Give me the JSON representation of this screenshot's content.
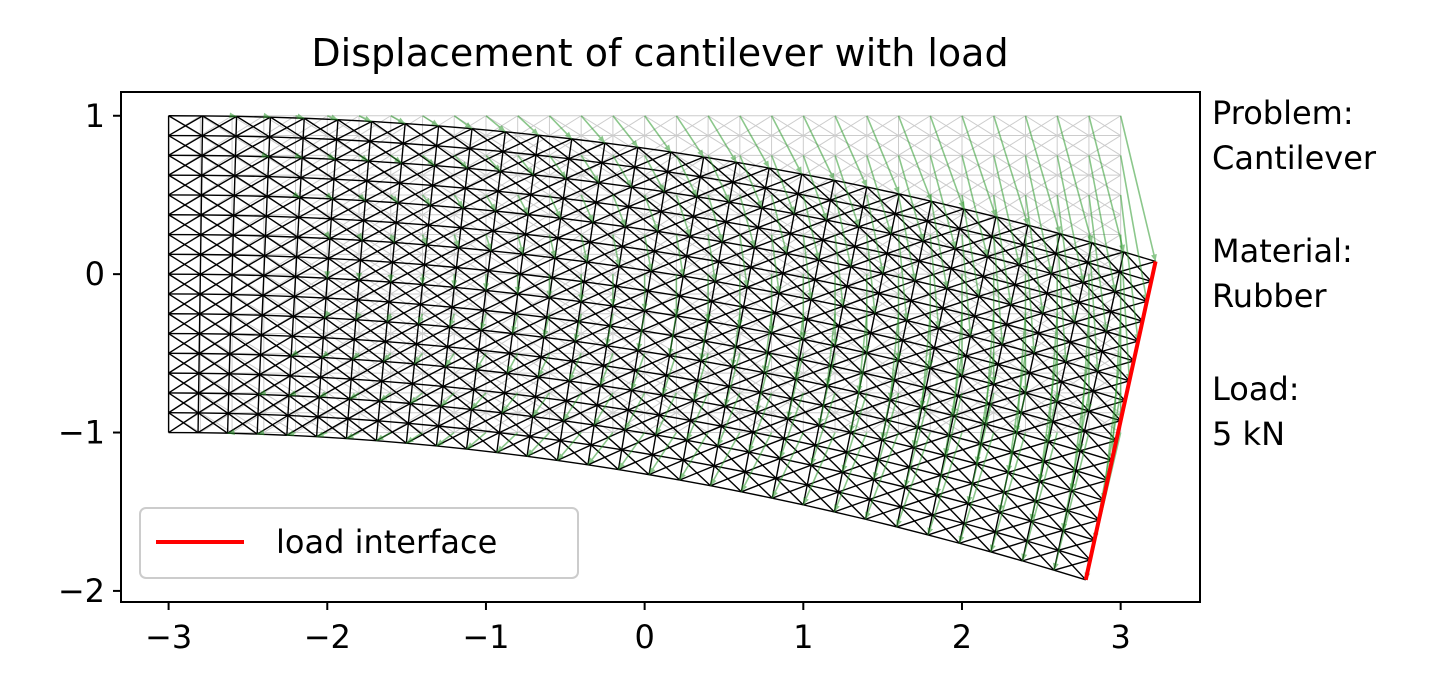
{
  "chart_data": {
    "type": "mesh-displacement",
    "title": "Displacement of cantilever with load",
    "xlabel": "",
    "ylabel": "",
    "xlim": [
      -3.3,
      3.5
    ],
    "ylim": [
      -2.07,
      1.15
    ],
    "xticks": [
      -3,
      -2,
      -1,
      0,
      1,
      2,
      3
    ],
    "yticks": [
      1,
      0,
      -1,
      -2
    ],
    "xtick_labels": [
      "−3",
      "−2",
      "−1",
      "0",
      "1",
      "2",
      "3"
    ],
    "ytick_labels": [
      "1",
      "0",
      "−1",
      "−2"
    ],
    "grid": false,
    "undeformed_mesh": {
      "x_range": [
        -3,
        3
      ],
      "y_range": [
        -1,
        1
      ],
      "cols": 30,
      "rows": 16,
      "color": "#cccccc"
    },
    "deformed_corners": {
      "top_left": [
        -3,
        1
      ],
      "bottom_left": [
        -3,
        -1
      ],
      "top_right": [
        3.22,
        0.08
      ],
      "bottom_right": [
        2.78,
        -1.93
      ]
    },
    "tip_displacement": [
      0.2,
      -0.92
    ],
    "tip_rotation_deg": 12.5,
    "deformed_mesh_color": "#000000",
    "arrow_color": "#2e9a2e",
    "load_interface_color": "#ff0000",
    "legend": {
      "position": "lower-left",
      "entries": [
        {
          "label": "load interface",
          "color": "#ff0000"
        }
      ]
    },
    "annotations": [
      "Problem:",
      "Cantilever",
      "",
      "Material:",
      "Rubber",
      "",
      "Load:",
      "5 kN"
    ]
  }
}
